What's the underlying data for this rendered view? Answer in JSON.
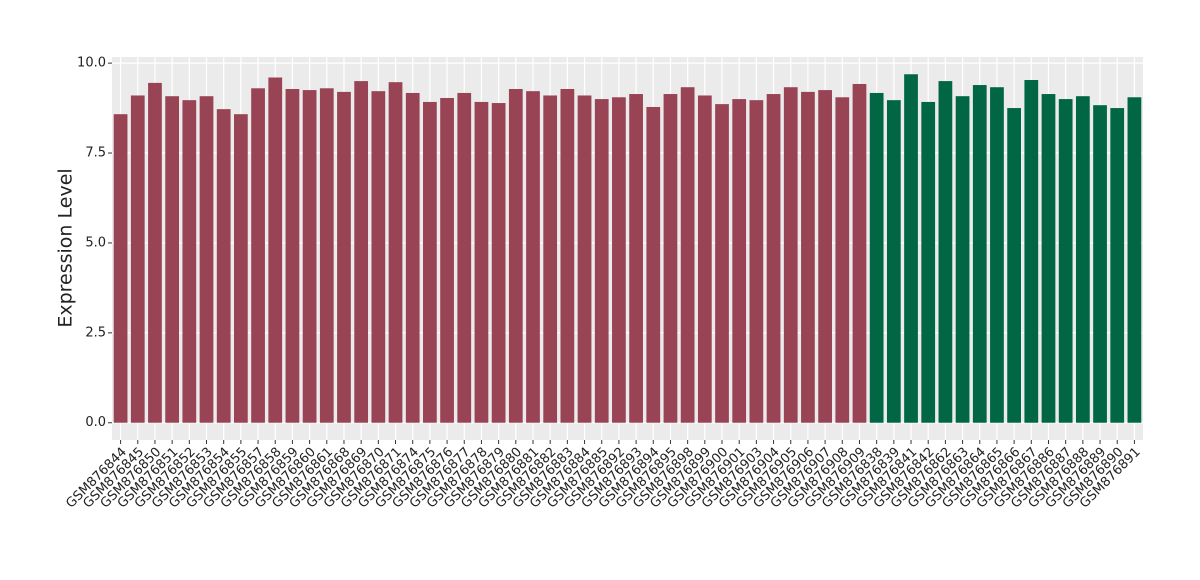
{
  "chart_data": {
    "type": "bar",
    "y_label": "Expression Level",
    "categories": [
      "GSM876844",
      "GSM876845",
      "GSM876850",
      "GSM876851",
      "GSM876852",
      "GSM876853",
      "GSM876854",
      "GSM876855",
      "GSM876857",
      "GSM876858",
      "GSM876859",
      "GSM876860",
      "GSM876861",
      "GSM876868",
      "GSM876869",
      "GSM876870",
      "GSM876871",
      "GSM876874",
      "GSM876875",
      "GSM876876",
      "GSM876877",
      "GSM876878",
      "GSM876879",
      "GSM876880",
      "GSM876881",
      "GSM876882",
      "GSM876883",
      "GSM876884",
      "GSM876885",
      "GSM876892",
      "GSM876893",
      "GSM876894",
      "GSM876895",
      "GSM876898",
      "GSM876899",
      "GSM876900",
      "GSM876901",
      "GSM876903",
      "GSM876904",
      "GSM876905",
      "GSM876906",
      "GSM876907",
      "GSM876908",
      "GSM876909",
      "GSM876838",
      "GSM876839",
      "GSM876841",
      "GSM876842",
      "GSM876862",
      "GSM876863",
      "GSM876864",
      "GSM876865",
      "GSM876866",
      "GSM876867",
      "GSM876886",
      "GSM876887",
      "GSM876888",
      "GSM876889",
      "GSM876890",
      "GSM876891"
    ],
    "values": [
      8.58,
      9.1,
      9.45,
      9.08,
      8.97,
      9.08,
      8.72,
      8.58,
      9.3,
      9.6,
      9.28,
      9.25,
      9.3,
      9.2,
      9.5,
      9.22,
      9.47,
      9.17,
      8.92,
      9.03,
      9.17,
      8.92,
      8.89,
      9.28,
      9.22,
      9.1,
      9.28,
      9.1,
      9.0,
      9.05,
      9.14,
      8.78,
      9.14,
      9.33,
      9.1,
      8.86,
      9.0,
      8.97,
      9.14,
      9.33,
      9.2,
      9.25,
      9.05,
      9.42,
      9.17,
      8.97,
      9.69,
      8.92,
      9.5,
      9.08,
      9.39,
      9.33,
      8.75,
      9.53,
      9.14,
      9.0,
      9.08,
      8.83,
      8.75,
      9.05
    ],
    "colors": [
      "#994455",
      "#994455",
      "#994455",
      "#994455",
      "#994455",
      "#994455",
      "#994455",
      "#994455",
      "#994455",
      "#994455",
      "#994455",
      "#994455",
      "#994455",
      "#994455",
      "#994455",
      "#994455",
      "#994455",
      "#994455",
      "#994455",
      "#994455",
      "#994455",
      "#994455",
      "#994455",
      "#994455",
      "#994455",
      "#994455",
      "#994455",
      "#994455",
      "#994455",
      "#994455",
      "#994455",
      "#994455",
      "#994455",
      "#994455",
      "#994455",
      "#994455",
      "#994455",
      "#994455",
      "#994455",
      "#994455",
      "#994455",
      "#994455",
      "#994455",
      "#994455",
      "#006644",
      "#006644",
      "#006644",
      "#006644",
      "#006644",
      "#006644",
      "#006644",
      "#006644",
      "#006644",
      "#006644",
      "#006644",
      "#006644",
      "#006644",
      "#006644",
      "#006644",
      "#006644"
    ],
    "ylim": [
      -0.48,
      10.17
    ],
    "yticks": [
      {
        "value": 0,
        "label": "0.0"
      },
      {
        "value": 2.5,
        "label": "2.5"
      },
      {
        "value": 5,
        "label": "5.0"
      },
      {
        "value": 7.5,
        "label": "7.5"
      },
      {
        "value": 10,
        "label": "10.0"
      }
    ],
    "grid": true
  }
}
